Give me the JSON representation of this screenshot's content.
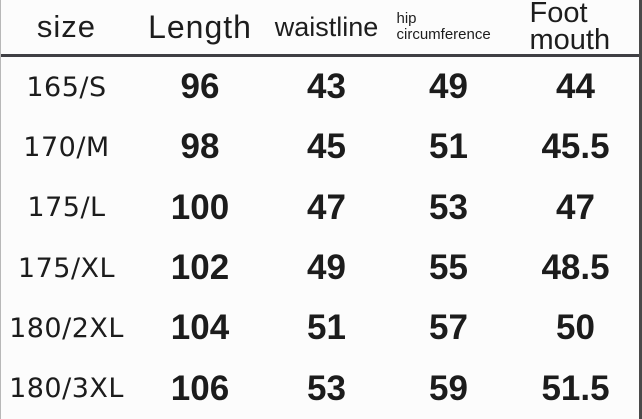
{
  "title": "pants size chart",
  "colors": {
    "background": "#fcfcfc",
    "text": "#1d1d1d",
    "header_rule": "#3f3f44",
    "right_border": "#4a4a4a"
  },
  "chart_data": {
    "type": "table",
    "title": "",
    "columns": [
      "size",
      "Length",
      "waistline",
      "hip circumference",
      "Foot mouth"
    ],
    "rows": [
      [
        "165/S",
        "96",
        "43",
        "49",
        "44"
      ],
      [
        "170/M",
        "98",
        "45",
        "51",
        "45.5"
      ],
      [
        "175/L",
        "100",
        "47",
        "53",
        "47"
      ],
      [
        "175/XL",
        "102",
        "49",
        "55",
        "48.5"
      ],
      [
        "180/2XL",
        "104",
        "51",
        "57",
        "50"
      ],
      [
        "180/3XL",
        "106",
        "53",
        "59",
        "51.5"
      ]
    ]
  }
}
